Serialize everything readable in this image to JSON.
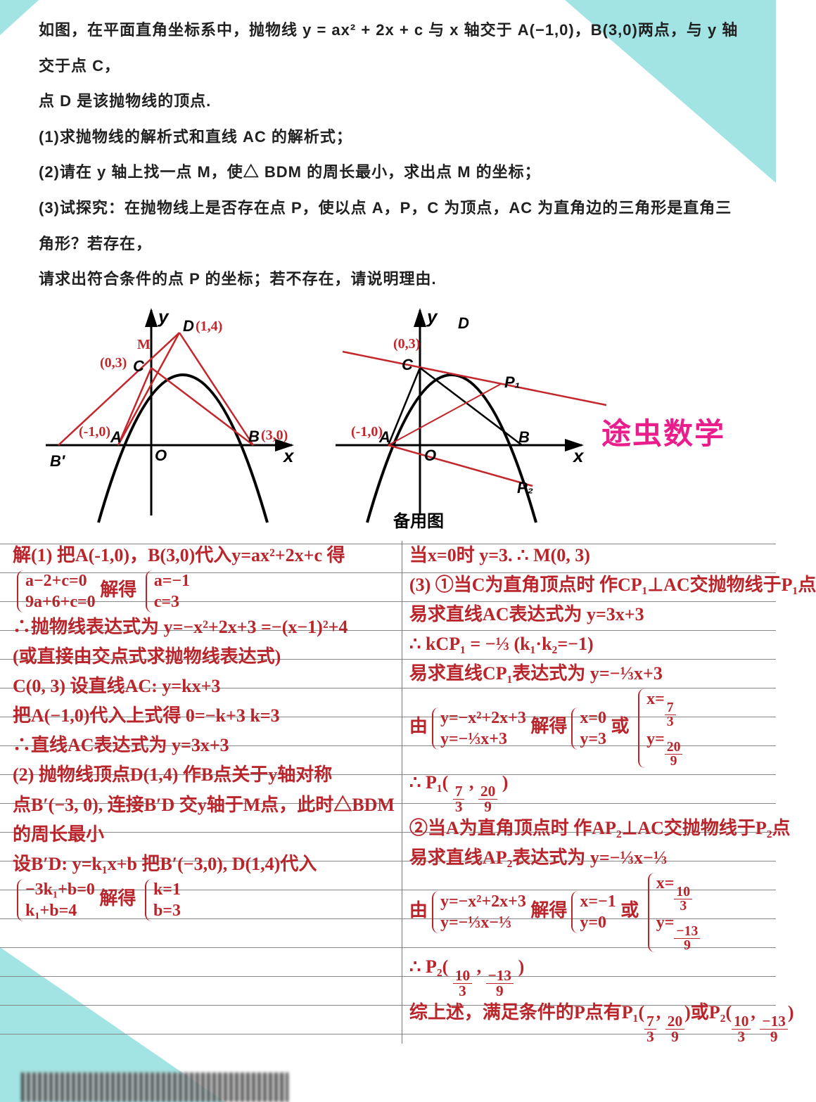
{
  "problem": {
    "stem": "如图，在平面直角坐标系中，抛物线 y = ax² + 2x + c 与 x 轴交于 A(−1,0)，B(3,0)两点，与 y 轴交于点 C，",
    "stem2": "点 D 是该抛物线的顶点.",
    "q1": "(1)求抛物线的解析式和直线 AC 的解析式；",
    "q2": "(2)请在 y 轴上找一点 M，使△ BDM 的周长最小，求出点 M 的坐标；",
    "q3": "(3)试探究：在抛物线上是否存在点 P，使以点 A，P，C 为顶点，AC 为直角边的三角形是直角三角形？若存在，",
    "q3b": "请求出符合条件的点 P 的坐标；若不存在，请说明理由."
  },
  "figures": {
    "left": {
      "axis_x": "x",
      "axis_y": "y",
      "pt_A": "A",
      "pt_B": "B",
      "pt_C": "C",
      "pt_D": "D",
      "pt_O": "O",
      "pt_Bp": "B′",
      "anno_D": "(1,4)",
      "anno_C": "(0,3)",
      "anno_A": "(-1,0)",
      "anno_B": "(3,0)",
      "anno_M": "M"
    },
    "right": {
      "axis_x": "x",
      "axis_y": "y",
      "pt_A": "A",
      "pt_B": "B",
      "pt_C": "C",
      "pt_D": "D",
      "pt_O": "O",
      "pt_P1": "P₁",
      "pt_P2": "P₂",
      "anno_A": "(-1,0)",
      "anno_C": "(0,3)"
    },
    "caption": "备用图",
    "watermark": "途虫数学"
  },
  "solution": {
    "left": [
      "解(1)  把A(-1,0)，B(3,0)代入y=ax²+2x+c 得",
      "{brace:a−2+c=0|9a+6+c=0}   解得 {brace:a=−1|c=3}",
      "∴抛物线表达式为 y=−x²+2x+3 =−(x−1)²+4",
      "(或直接由交点式求抛物线表达式)",
      "  C(0, 3)   设直线AC:  y=kx+3",
      "把A(−1,0)代入上式得  0=−k+3   k=3",
      "∴直线AC表达式为  y=3x+3",
      " ",
      "(2) 抛物线顶点D(1,4)   作B点关于y轴对称",
      "点B′(−3, 0), 连接B′D 交y轴于M点，此时△BDM",
      "的周长最小",
      " 设B′D:  y=k₁x+b   把B′(−3,0), D(1,4)代入",
      "{brace:−3k₁+b=0|k₁+b=4}   解得 {brace:k=1|b=3}"
    ],
    "right": [
      "当x=0时 y=3.    ∴ M(0, 3)",
      "(3) ①当C为直角顶点时  作CP₁⊥AC交抛物线于P₁点",
      "易求直线AC表达式为 y=3x+3",
      "∴ kCP₁ = −⅓    (k₁·k₂=−1)",
      "易求直线CP₁表达式为 y=−⅓x+3",
      "由{brace:y=−x²+2x+3|y=−⅓x+3} 解得{brace:x=0|y=3} 或 {brace:x=7⁄3|y=20⁄9}",
      "∴ P₁( 7⁄3 , 20⁄9 )",
      "②当A为直角顶点时  作AP₂⊥AC交抛物线于P₂点",
      "易求直线AP₂表达式为 y=−⅓x−⅓",
      "由{brace:y=−x²+2x+3|y=−⅓x−⅓} 解得{brace:x=−1|y=0} 或 {brace:x=10⁄3|y=−13⁄9}",
      "∴ P₂( 10⁄3 , −13⁄9 )",
      "综上述，满足条件的P点有P₁(7⁄3, 20⁄9)或P₂(10⁄3, −13⁄9)"
    ]
  },
  "colors": {
    "bg_accent": "#a2e4e3",
    "text": "#202020",
    "handwriting": "#b9252b",
    "watermark": "#e91e8c",
    "rule": "#888888"
  }
}
